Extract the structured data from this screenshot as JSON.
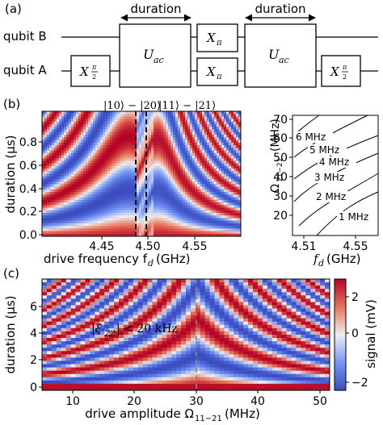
{
  "panel_a": {
    "label": "(a)",
    "qubit_b": "qubit B",
    "qubit_a": "qubit A",
    "duration_1": "duration",
    "duration_2": "duration",
    "gate_uac": "U",
    "gate_uac_sub": "ac",
    "gate_xpi": "X",
    "gate_xpi_sub": "π",
    "gate_xhalf": "X",
    "gate_xhalf_num": "π",
    "gate_xhalf_den": "2"
  },
  "panel_b": {
    "label": "(b)",
    "transition_1": "|10⟩ − |20⟩",
    "transition_2": "|11⟩ − |21⟩",
    "ylabel": "duration (μs)",
    "xlabel": "drive frequency f",
    "xlabel_sub": "d",
    "xlabel_unit": "(GHz)",
    "xticks": [
      "4.45",
      "4.50",
      "4.55"
    ],
    "yticks": [
      "0.0",
      "0.2",
      "0.4",
      "0.6",
      "0.8"
    ],
    "inset_ylabel": "Ω",
    "inset_ylabel_sub": "11−21",
    "inset_ylabel_unit": "(MHz)",
    "inset_xlabel": "f",
    "inset_xlabel_sub": "d",
    "inset_xlabel_unit": "(GHz)",
    "inset_xticks": [
      "4.51",
      "4.55"
    ],
    "inset_yticks": [
      "20",
      "30",
      "40",
      "50",
      "60",
      "70"
    ],
    "contour_labels": [
      "1 MHz",
      "2 MHz",
      "3 MHz",
      "4 MHz",
      "5 MHz",
      "6 MHz"
    ]
  },
  "panel_c": {
    "label": "(c)",
    "annotation": "|ξ",
    "annotation_sub": "ZZ",
    "annotation_rest": "| < 20 kHz",
    "ylabel": "duration (μs)",
    "xlabel": "drive amplitude Ω",
    "xlabel_sub": "11−21",
    "xlabel_unit": "(MHz)",
    "xticks": [
      "10",
      "20",
      "30",
      "40",
      "50"
    ],
    "yticks": [
      "0",
      "2",
      "4",
      "6"
    ],
    "colorbar_label": "signal (mV)",
    "colorbar_ticks": [
      "2",
      "0",
      "−2"
    ]
  },
  "colors": {
    "red": "#b40426",
    "white": "#f2f2f2",
    "blue": "#3b4cc0"
  }
}
